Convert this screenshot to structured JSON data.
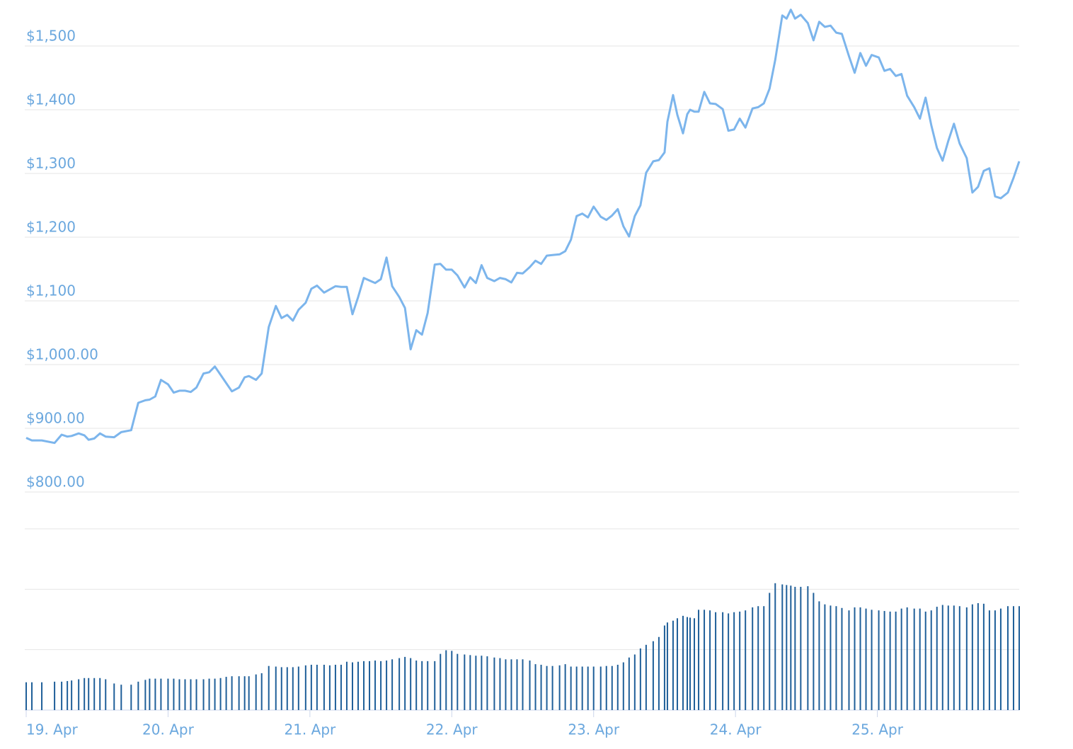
{
  "chart_data": [
    {
      "type": "line",
      "color": "#7cb5ec",
      "x": [
        19.0,
        19.04,
        19.11,
        19.2,
        19.25,
        19.29,
        19.32,
        19.37,
        19.41,
        19.44,
        19.48,
        19.52,
        19.56,
        19.62,
        19.67,
        19.74,
        19.79,
        19.84,
        19.87,
        19.91,
        19.95,
        20.0,
        20.04,
        20.08,
        20.12,
        20.16,
        20.2,
        20.25,
        20.29,
        20.33,
        20.37,
        20.41,
        20.45,
        20.5,
        20.54,
        20.57,
        20.62,
        20.66,
        20.71,
        20.76,
        20.8,
        20.84,
        20.88,
        20.92,
        20.97,
        21.01,
        21.05,
        21.1,
        21.14,
        21.18,
        21.22,
        21.26,
        21.3,
        21.34,
        21.38,
        21.42,
        21.46,
        21.5,
        21.54,
        21.58,
        21.63,
        21.67,
        21.71,
        21.75,
        21.79,
        21.83,
        21.88,
        21.92,
        21.96,
        22.0,
        22.04,
        22.09,
        22.13,
        22.17,
        22.21,
        22.25,
        22.3,
        22.34,
        22.38,
        22.42,
        22.46,
        22.5,
        22.55,
        22.59,
        22.63,
        22.67,
        22.71,
        22.76,
        22.8,
        22.84,
        22.88,
        22.92,
        22.96,
        23.0,
        23.05,
        23.09,
        23.13,
        23.17,
        23.21,
        23.25,
        23.29,
        23.33,
        23.37,
        23.42,
        23.46,
        23.5,
        23.52,
        23.56,
        23.59,
        23.63,
        23.66,
        23.68,
        23.71,
        23.74,
        23.78,
        23.82,
        23.86,
        23.91,
        23.95,
        23.99,
        24.03,
        24.07,
        24.12,
        24.16,
        24.2,
        24.24,
        24.28,
        24.33,
        24.36,
        24.39,
        24.42,
        24.46,
        24.51,
        24.55,
        24.59,
        24.63,
        24.67,
        24.71,
        24.75,
        24.8,
        24.84,
        24.88,
        24.92,
        24.96,
        25.01,
        25.05,
        25.09,
        25.13,
        25.17,
        25.21,
        25.26,
        25.3,
        25.34,
        25.38,
        25.42,
        25.46,
        25.5,
        25.54,
        25.58,
        25.63,
        25.67,
        25.71,
        25.75,
        25.79,
        25.83,
        25.87,
        25.92,
        25.96,
        26.0
      ],
      "values": [
        885,
        881,
        881,
        877,
        890,
        887,
        888,
        892,
        889,
        882,
        884,
        892,
        887,
        886,
        894,
        897,
        940,
        944,
        945,
        950,
        976,
        969,
        956,
        959,
        959,
        957,
        964,
        986,
        988,
        997,
        984,
        971,
        958,
        964,
        980,
        982,
        976,
        986,
        1059,
        1092,
        1073,
        1078,
        1069,
        1086,
        1097,
        1119,
        1124,
        1113,
        1118,
        1123,
        1122,
        1122,
        1079,
        1106,
        1136,
        1132,
        1128,
        1134,
        1168,
        1123,
        1106,
        1089,
        1024,
        1054,
        1047,
        1081,
        1157,
        1158,
        1149,
        1149,
        1140,
        1121,
        1137,
        1128,
        1156,
        1136,
        1131,
        1136,
        1134,
        1129,
        1144,
        1143,
        1153,
        1163,
        1158,
        1171,
        1172,
        1173,
        1178,
        1196,
        1233,
        1237,
        1231,
        1248,
        1232,
        1227,
        1234,
        1244,
        1217,
        1201,
        1233,
        1250,
        1301,
        1319,
        1321,
        1333,
        1381,
        1423,
        1392,
        1363,
        1393,
        1400,
        1397,
        1397,
        1428,
        1410,
        1409,
        1401,
        1367,
        1369,
        1386,
        1372,
        1402,
        1404,
        1410,
        1433,
        1478,
        1548,
        1543,
        1557,
        1543,
        1549,
        1536,
        1509,
        1538,
        1530,
        1532,
        1521,
        1519,
        1484,
        1458,
        1489,
        1469,
        1486,
        1482,
        1461,
        1464,
        1453,
        1456,
        1422,
        1404,
        1386,
        1419,
        1376,
        1340,
        1320,
        1351,
        1378,
        1347,
        1324,
        1270,
        1279,
        1304,
        1308,
        1264,
        1261,
        1270,
        1293,
        1319
      ],
      "xlim": [
        19,
        26
      ],
      "ylim": [
        745,
        1560
      ],
      "yticks": [
        {
          "value": 1500,
          "label": "$1,500"
        },
        {
          "value": 1400,
          "label": "$1,400"
        },
        {
          "value": 1300,
          "label": "$1,300"
        },
        {
          "value": 1200,
          "label": "$1,200"
        },
        {
          "value": 1100,
          "label": "$1,100"
        },
        {
          "value": 1000,
          "label": "$1,000.00"
        },
        {
          "value": 900,
          "label": "$900.00"
        },
        {
          "value": 800,
          "label": "$800.00"
        }
      ],
      "grid": true
    },
    {
      "type": "bar",
      "color": "#1f5f99",
      "x": [
        19.0,
        19.04,
        19.11,
        19.2,
        19.25,
        19.29,
        19.32,
        19.37,
        19.41,
        19.44,
        19.48,
        19.52,
        19.56,
        19.62,
        19.67,
        19.74,
        19.79,
        19.84,
        19.87,
        19.91,
        19.95,
        20.0,
        20.04,
        20.08,
        20.12,
        20.16,
        20.2,
        20.25,
        20.29,
        20.33,
        20.37,
        20.41,
        20.45,
        20.5,
        20.54,
        20.57,
        20.62,
        20.66,
        20.71,
        20.76,
        20.8,
        20.84,
        20.88,
        20.92,
        20.97,
        21.01,
        21.05,
        21.1,
        21.14,
        21.18,
        21.22,
        21.26,
        21.3,
        21.34,
        21.38,
        21.42,
        21.46,
        21.5,
        21.54,
        21.58,
        21.63,
        21.67,
        21.71,
        21.75,
        21.79,
        21.83,
        21.88,
        21.92,
        21.96,
        22.0,
        22.04,
        22.09,
        22.13,
        22.17,
        22.21,
        22.25,
        22.3,
        22.34,
        22.38,
        22.42,
        22.46,
        22.5,
        22.55,
        22.59,
        22.63,
        22.67,
        22.71,
        22.76,
        22.8,
        22.84,
        22.88,
        22.92,
        22.96,
        23.0,
        23.05,
        23.09,
        23.13,
        23.17,
        23.21,
        23.25,
        23.29,
        23.33,
        23.37,
        23.42,
        23.46,
        23.5,
        23.52,
        23.56,
        23.59,
        23.63,
        23.66,
        23.68,
        23.71,
        23.74,
        23.78,
        23.82,
        23.86,
        23.91,
        23.95,
        23.99,
        24.03,
        24.07,
        24.12,
        24.16,
        24.2,
        24.24,
        24.28,
        24.33,
        24.36,
        24.39,
        24.42,
        24.46,
        24.51,
        24.55,
        24.59,
        24.63,
        24.67,
        24.71,
        24.75,
        24.8,
        24.84,
        24.88,
        24.92,
        24.96,
        25.01,
        25.05,
        25.09,
        25.13,
        25.17,
        25.21,
        25.26,
        25.3,
        25.34,
        25.38,
        25.42,
        25.46,
        25.5,
        25.54,
        25.58,
        25.63,
        25.67,
        25.71,
        25.75,
        25.79,
        25.83,
        25.87,
        25.92,
        25.96,
        26.0
      ],
      "values": [
        0.46,
        0.46,
        0.46,
        0.47,
        0.47,
        0.48,
        0.49,
        0.51,
        0.53,
        0.53,
        0.53,
        0.53,
        0.51,
        0.44,
        0.42,
        0.42,
        0.47,
        0.5,
        0.52,
        0.52,
        0.52,
        0.52,
        0.52,
        0.51,
        0.51,
        0.51,
        0.51,
        0.51,
        0.52,
        0.52,
        0.53,
        0.55,
        0.56,
        0.56,
        0.56,
        0.56,
        0.59,
        0.61,
        0.73,
        0.72,
        0.71,
        0.71,
        0.71,
        0.72,
        0.74,
        0.75,
        0.75,
        0.75,
        0.74,
        0.75,
        0.75,
        0.8,
        0.79,
        0.8,
        0.81,
        0.81,
        0.82,
        0.81,
        0.82,
        0.84,
        0.86,
        0.88,
        0.86,
        0.82,
        0.81,
        0.81,
        0.81,
        0.93,
        0.99,
        0.98,
        0.93,
        0.92,
        0.91,
        0.9,
        0.9,
        0.89,
        0.87,
        0.86,
        0.84,
        0.84,
        0.84,
        0.84,
        0.82,
        0.76,
        0.75,
        0.73,
        0.73,
        0.74,
        0.76,
        0.72,
        0.72,
        0.72,
        0.72,
        0.72,
        0.72,
        0.73,
        0.73,
        0.75,
        0.79,
        0.87,
        0.92,
        1.02,
        1.08,
        1.14,
        1.21,
        1.4,
        1.45,
        1.48,
        1.52,
        1.56,
        1.54,
        1.53,
        1.52,
        1.66,
        1.66,
        1.65,
        1.62,
        1.62,
        1.6,
        1.62,
        1.63,
        1.65,
        1.7,
        1.72,
        1.72,
        1.94,
        2.1,
        2.08,
        2.07,
        2.06,
        2.04,
        2.04,
        2.05,
        1.94,
        1.8,
        1.75,
        1.73,
        1.72,
        1.69,
        1.65,
        1.7,
        1.7,
        1.68,
        1.66,
        1.65,
        1.64,
        1.63,
        1.63,
        1.68,
        1.7,
        1.68,
        1.68,
        1.63,
        1.65,
        1.71,
        1.74,
        1.73,
        1.73,
        1.72,
        1.7,
        1.75,
        1.77,
        1.76,
        1.65,
        1.65,
        1.68,
        1.72,
        1.72,
        1.72
      ],
      "xlim": [
        19,
        26
      ],
      "ylim": [
        0,
        3
      ],
      "yticks": [
        0,
        1,
        2,
        3
      ],
      "xticks": [
        {
          "value": 19,
          "label": "19. Apr"
        },
        {
          "value": 20,
          "label": "20. Apr"
        },
        {
          "value": 21,
          "label": "21. Apr"
        },
        {
          "value": 22,
          "label": "22. Apr"
        },
        {
          "value": 23,
          "label": "23. Apr"
        },
        {
          "value": 24,
          "label": "24. Apr"
        },
        {
          "value": 25,
          "label": "25. Apr"
        }
      ],
      "grid": true
    }
  ]
}
